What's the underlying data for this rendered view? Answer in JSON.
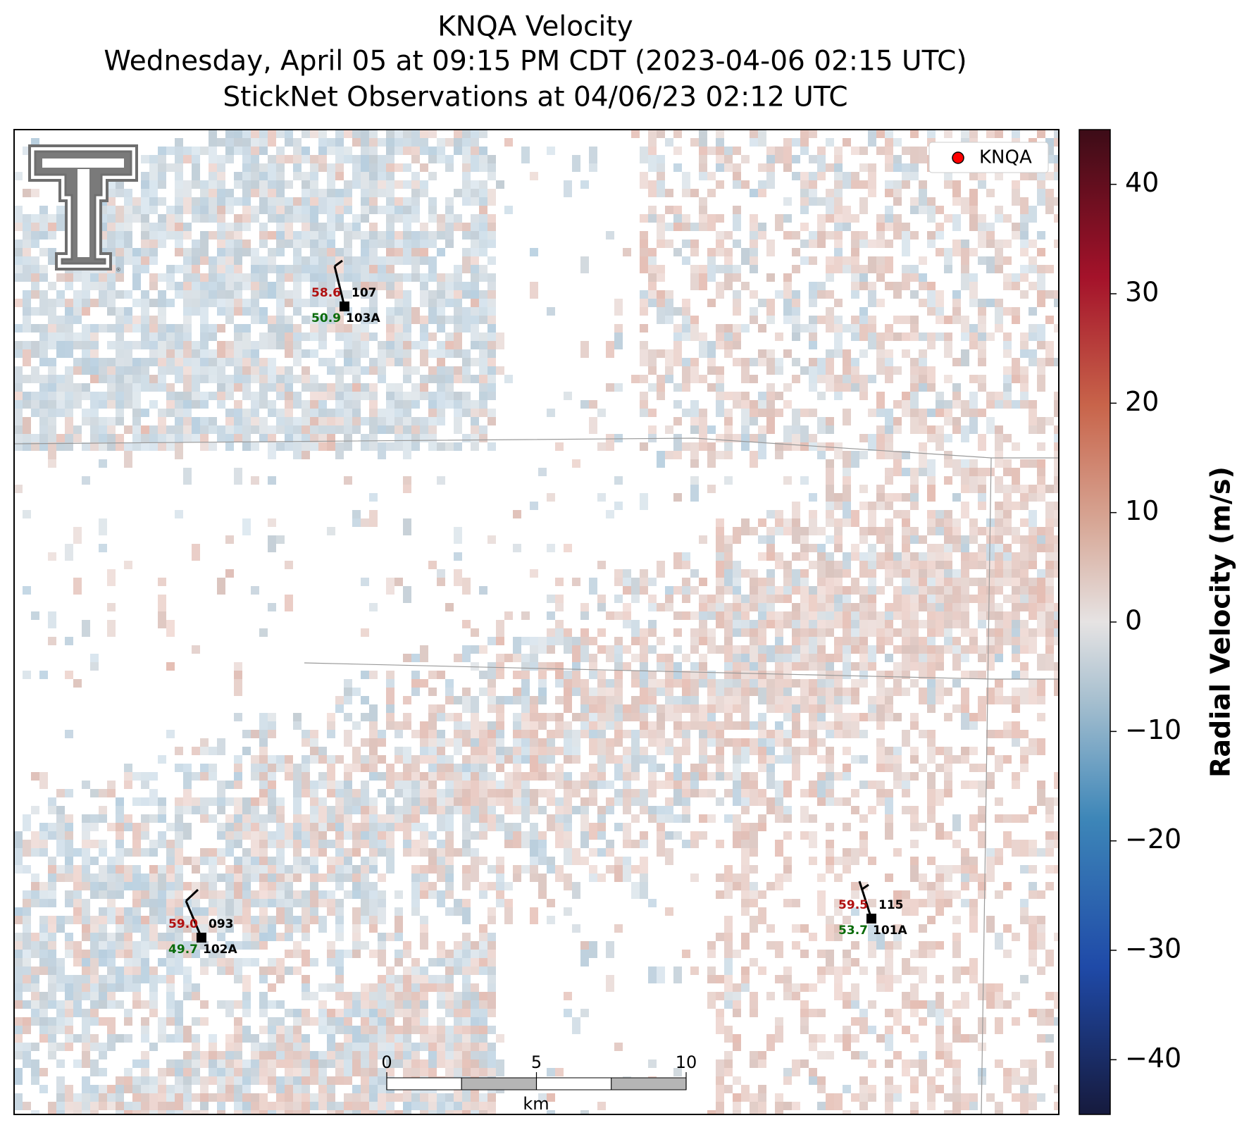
{
  "title_lines": [
    "KNQA Velocity",
    "Wednesday, April 05 at 09:15 PM CDT (2023-04-06 02:15 UTC)",
    "StickNet Observations at 04/06/23 02:12 UTC"
  ],
  "legend": {
    "label": "KNQA",
    "color": "#ff0000"
  },
  "colorbar": {
    "label": "Radial Velocity (m/s)",
    "lim": [
      -45,
      45
    ],
    "ticks": [
      {
        "value": -40,
        "label": "−40"
      },
      {
        "value": -30,
        "label": "−30"
      },
      {
        "value": -20,
        "label": "−20"
      },
      {
        "value": -10,
        "label": "−10"
      },
      0,
      10,
      20,
      30,
      40
    ]
  },
  "scale_bar": {
    "ticks": [
      0,
      5,
      10
    ],
    "unit": "km"
  },
  "stations": [
    {
      "temperature": "58.6",
      "dewpoint": "50.9",
      "value": "107",
      "id": "103A"
    },
    {
      "temperature": "59.0",
      "dewpoint": "49.7",
      "value": "093",
      "id": "102A"
    },
    {
      "temperature": "59.5",
      "dewpoint": "53.7",
      "value": "115",
      "id": "101A"
    }
  ]
}
